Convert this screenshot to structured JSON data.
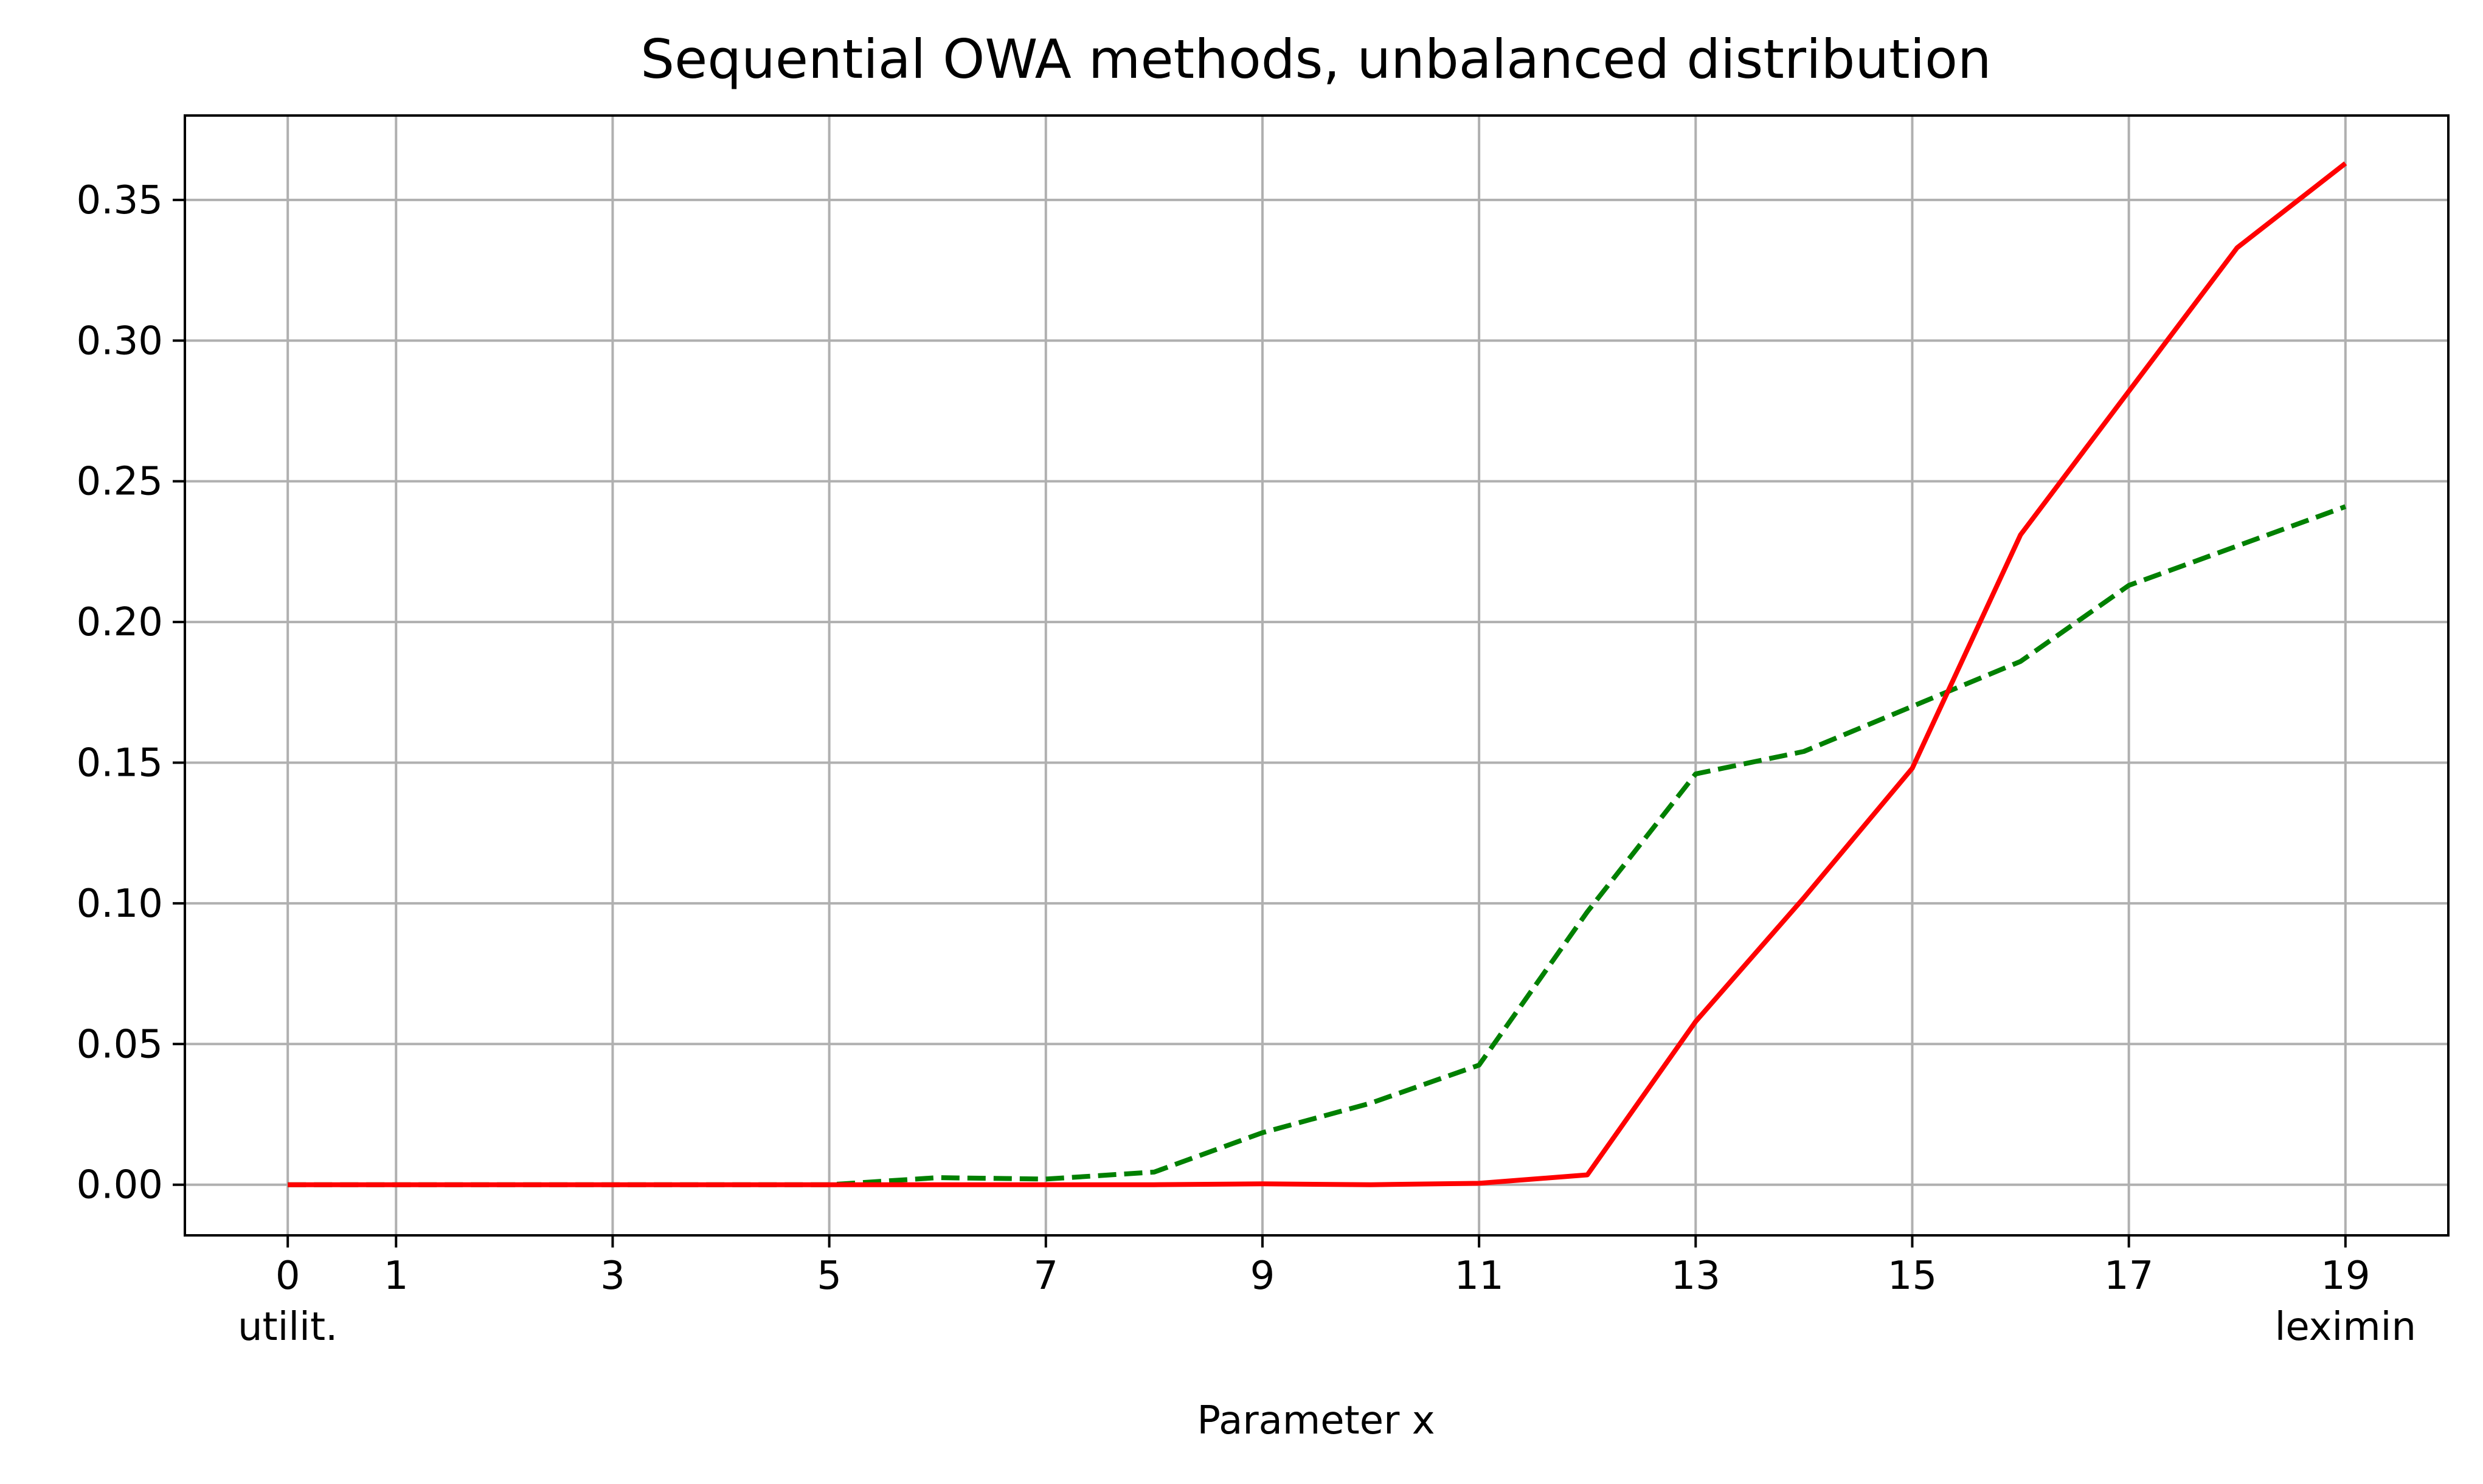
{
  "chart_data": {
    "type": "line",
    "title": "Sequential OWA methods, unbalanced distribution",
    "xlabel": "Parameter x",
    "ylabel": "",
    "xlim": [
      -0.95,
      19.95
    ],
    "ylim": [
      -0.018,
      0.38
    ],
    "xticks": [
      0,
      1,
      3,
      5,
      7,
      9,
      11,
      13,
      15,
      17,
      19
    ],
    "xtick_labels": [
      "0",
      "1",
      "3",
      "5",
      "7",
      "9",
      "11",
      "13",
      "15",
      "17",
      "19"
    ],
    "xtick_sublabels": [
      {
        "x": 0,
        "text": "utilit."
      },
      {
        "x": 19,
        "text": "leximin"
      }
    ],
    "yticks": [
      0.0,
      0.05,
      0.1,
      0.15,
      0.2,
      0.25,
      0.3,
      0.35
    ],
    "ytick_labels": [
      "0.00",
      "0.05",
      "0.10",
      "0.15",
      "0.20",
      "0.25",
      "0.30",
      "0.35"
    ],
    "grid": true,
    "x": [
      0,
      1,
      2,
      3,
      4,
      5,
      6,
      7,
      8,
      9,
      10,
      11,
      12,
      13,
      14,
      15,
      16,
      17,
      18,
      19
    ],
    "series": [
      {
        "color": "#ff0000",
        "style": "solid",
        "values": [
          0.0,
          0.0,
          0.0,
          0.0,
          0.0,
          0.0,
          0.0,
          0.0,
          0.0,
          0.0003,
          0.0,
          0.0005,
          0.0035,
          0.058,
          0.102,
          0.148,
          0.231,
          0.282,
          0.333,
          0.363
        ]
      },
      {
        "color": "#008000",
        "style": "dashed",
        "values": [
          0.0,
          0.0,
          0.0,
          0.0,
          0.0,
          0.0,
          0.0025,
          0.002,
          0.0045,
          0.0185,
          0.029,
          0.0425,
          0.097,
          0.146,
          0.154,
          0.17,
          0.186,
          0.213,
          0.227,
          0.241
        ]
      }
    ]
  }
}
